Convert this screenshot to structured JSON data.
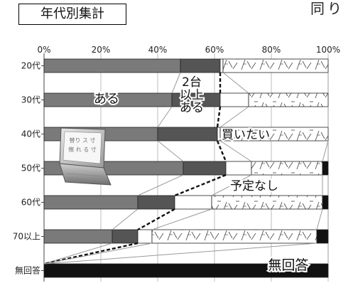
{
  "header": {
    "title": "年代別集計",
    "corner_text": "同り"
  },
  "chart_data": {
    "type": "bar",
    "orientation": "horizontal",
    "stacked": true,
    "title": "年代別集計",
    "x_tick_labels": [
      "0%",
      "20%",
      "40%",
      "60%",
      "80%",
      "100%"
    ],
    "xlim": [
      0,
      100
    ],
    "categories": [
      "20代",
      "30代",
      "40代",
      "50代",
      "60代",
      "70以上",
      "無回答"
    ],
    "series": [
      {
        "name": "",
        "values": [
          48,
          45,
          40,
          49,
          33,
          24,
          0
        ],
        "color": "#7a7a7a",
        "pattern": "solid"
      },
      {
        "name": "2台以上ある",
        "values": [
          14,
          17,
          21,
          15,
          13,
          9,
          0
        ],
        "color": "#555555",
        "pattern": "solid"
      },
      {
        "name": "買いたい",
        "values": [
          1,
          10,
          1,
          9,
          13,
          5,
          0
        ],
        "color": "#ffffff",
        "pattern": "blank"
      },
      {
        "name": "予定なし",
        "values": [
          37,
          28,
          38,
          25,
          39,
          58,
          0
        ],
        "color": "#ffffff",
        "pattern": "hatched"
      },
      {
        "name": "無回答",
        "values": [
          0,
          0,
          0,
          2,
          2,
          4,
          100
        ],
        "color": "#111111",
        "pattern": "solid"
      }
    ],
    "annotations": [
      {
        "text": "ある",
        "series": 0
      },
      {
        "text": "2台\n以上\nある",
        "series": 1
      },
      {
        "text": "買いたい",
        "series": 2
      },
      {
        "text": "予定なし",
        "series": 3
      },
      {
        "text": "無回答",
        "series": 4
      }
    ],
    "inset_image": {
      "type": "laptop",
      "screen_text": [
        "替り ス 寸",
        "儐 れ る 寸"
      ]
    },
    "grid": true,
    "connector_lines": true
  }
}
